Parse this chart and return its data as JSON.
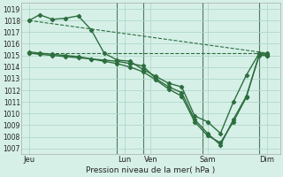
{
  "title": "Pression niveau de la mer( hPa )",
  "background_color": "#d6f0e8",
  "grid_color": "#b0d8c8",
  "line_color": "#2d6e3e",
  "ylim": [
    1006.5,
    1019.5
  ],
  "yticks": [
    1007,
    1008,
    1009,
    1010,
    1011,
    1012,
    1013,
    1014,
    1015,
    1016,
    1017,
    1018,
    1019
  ],
  "xlim": [
    0,
    10
  ],
  "day_labels": [
    "Jeu",
    "Lun",
    "Ven",
    "Sam",
    "Dim"
  ],
  "day_positions": [
    0.3,
    4.0,
    5.0,
    7.2,
    9.5
  ],
  "vline_positions": [
    3.7,
    4.7,
    7.0,
    9.2
  ],
  "series1": {
    "x": [
      0.3,
      0.7,
      1.2,
      1.7,
      2.2,
      2.7,
      3.2,
      3.7,
      4.2,
      4.7,
      5.2,
      5.7,
      6.2,
      6.7,
      7.2,
      7.7,
      8.2,
      8.7,
      9.2,
      9.5
    ],
    "y": [
      1018.0,
      1018.5,
      1018.1,
      1018.2,
      1018.4,
      1017.2,
      1015.2,
      1014.6,
      1014.5,
      1013.8,
      1013.2,
      1012.6,
      1012.3,
      1009.8,
      1009.3,
      1008.3,
      1011.0,
      1013.3,
      1015.2,
      1015.1
    ]
  },
  "series2": {
    "x": [
      0.3,
      0.7,
      1.2,
      1.7,
      2.2,
      2.7,
      3.2,
      3.7,
      4.2,
      4.7,
      5.2,
      5.7,
      6.2,
      6.7,
      7.2,
      7.7,
      8.2,
      8.7,
      9.2,
      9.5
    ],
    "y": [
      1015.2,
      1015.1,
      1015.0,
      1014.9,
      1014.8,
      1014.7,
      1014.6,
      1014.5,
      1014.3,
      1014.1,
      1013.0,
      1012.3,
      1011.8,
      1009.5,
      1008.3,
      1007.3,
      1009.5,
      1011.5,
      1015.0,
      1015.0
    ]
  },
  "series3": {
    "x": [
      0.3,
      0.7,
      1.2,
      1.7,
      2.2,
      2.7,
      3.2,
      3.7,
      4.2,
      4.7,
      5.2,
      5.7,
      6.2,
      6.7,
      7.2,
      7.7,
      8.2,
      8.7,
      9.2,
      9.5
    ],
    "y": [
      1015.3,
      1015.2,
      1015.1,
      1015.0,
      1014.9,
      1014.7,
      1014.5,
      1014.3,
      1014.0,
      1013.6,
      1012.9,
      1012.1,
      1011.5,
      1009.3,
      1008.1,
      1007.5,
      1009.3,
      1011.4,
      1015.1,
      1015.0
    ]
  },
  "series_dashed": {
    "x": [
      0.3,
      9.5
    ],
    "y": [
      1015.2,
      1015.2
    ]
  },
  "series_dashed2": {
    "x": [
      0.3,
      9.5
    ],
    "y": [
      1018.0,
      1015.2
    ]
  }
}
